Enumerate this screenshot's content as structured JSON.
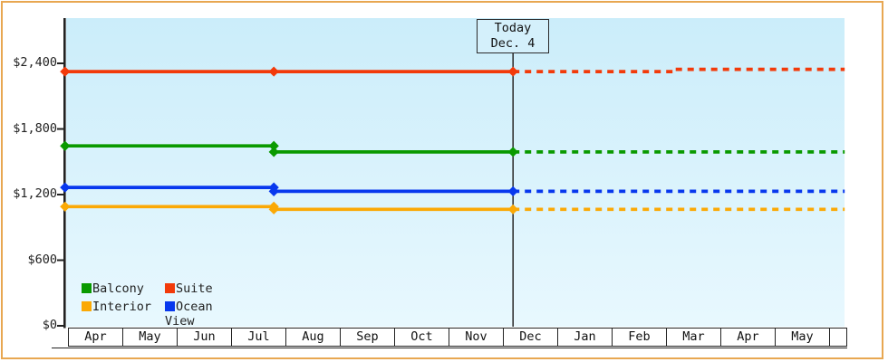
{
  "colors": {
    "frame_border": "#E8A751",
    "plot_bg_top": "#CBEDFA",
    "plot_bg_bottom": "#E8F8FE",
    "axis": "#222222",
    "today_line": "#333333",
    "today_box_fill": "#D4F0FB",
    "balcony": "#0A9A00",
    "suite": "#F23A0A",
    "interior": "#FBA905",
    "ocean_view": "#0838EE"
  },
  "chart_data": {
    "type": "line",
    "y_axis": {
      "ticks": [
        {
          "value": 0,
          "label": "$0"
        },
        {
          "value": 600,
          "label": "$600"
        },
        {
          "value": 1200,
          "label": "$1,200"
        },
        {
          "value": 1800,
          "label": "$1,800"
        },
        {
          "value": 2400,
          "label": "$2,400"
        }
      ],
      "range_usd": [
        0,
        2820
      ],
      "grid": false
    },
    "x_axis": {
      "unit": "month",
      "categories": [
        "Apr",
        "May",
        "Jun",
        "Jul",
        "Aug",
        "Sep",
        "Oct",
        "Nov",
        "Dec",
        "Jan",
        "Feb",
        "Mar",
        "Apr",
        "May"
      ],
      "has_partial_trailing_cell": true
    },
    "today": {
      "label": [
        "Today",
        "Dec. 4"
      ],
      "x_months_from_apr": 8.17
    },
    "series": [
      {
        "name": "Interior",
        "color": "#FBA905",
        "observed_points_month_usd": [
          [
            -0.07,
            1090
          ],
          [
            3.77,
            1090
          ],
          [
            3.77,
            1065
          ],
          [
            8.17,
            1065
          ]
        ],
        "projected_points_month_usd": [
          [
            8.17,
            1065
          ],
          [
            14.27,
            1065
          ]
        ]
      },
      {
        "name": "Ocean View",
        "color": "#0838EE",
        "observed_points_month_usd": [
          [
            -0.07,
            1265
          ],
          [
            3.77,
            1265
          ],
          [
            3.77,
            1230
          ],
          [
            8.17,
            1230
          ]
        ],
        "projected_points_month_usd": [
          [
            8.17,
            1230
          ],
          [
            14.27,
            1230
          ]
        ]
      },
      {
        "name": "Balcony",
        "color": "#0A9A00",
        "observed_points_month_usd": [
          [
            -0.07,
            1645
          ],
          [
            3.77,
            1645
          ],
          [
            3.77,
            1590
          ],
          [
            8.17,
            1590
          ]
        ],
        "projected_points_month_usd": [
          [
            8.17,
            1590
          ],
          [
            14.27,
            1590
          ]
        ]
      },
      {
        "name": "Suite",
        "color": "#F23A0A",
        "observed_points_month_usd": [
          [
            -0.07,
            2325
          ],
          [
            3.77,
            2325
          ],
          [
            8.17,
            2325
          ]
        ],
        "projected_points_month_usd": [
          [
            8.17,
            2325
          ],
          [
            11.15,
            2325
          ],
          [
            11.15,
            2345
          ],
          [
            14.27,
            2345
          ]
        ]
      }
    ],
    "legend": {
      "rows": [
        [
          "Balcony",
          "Suite"
        ],
        [
          "Interior",
          "Ocean View"
        ]
      ],
      "position": "bottom-left-inside"
    }
  }
}
